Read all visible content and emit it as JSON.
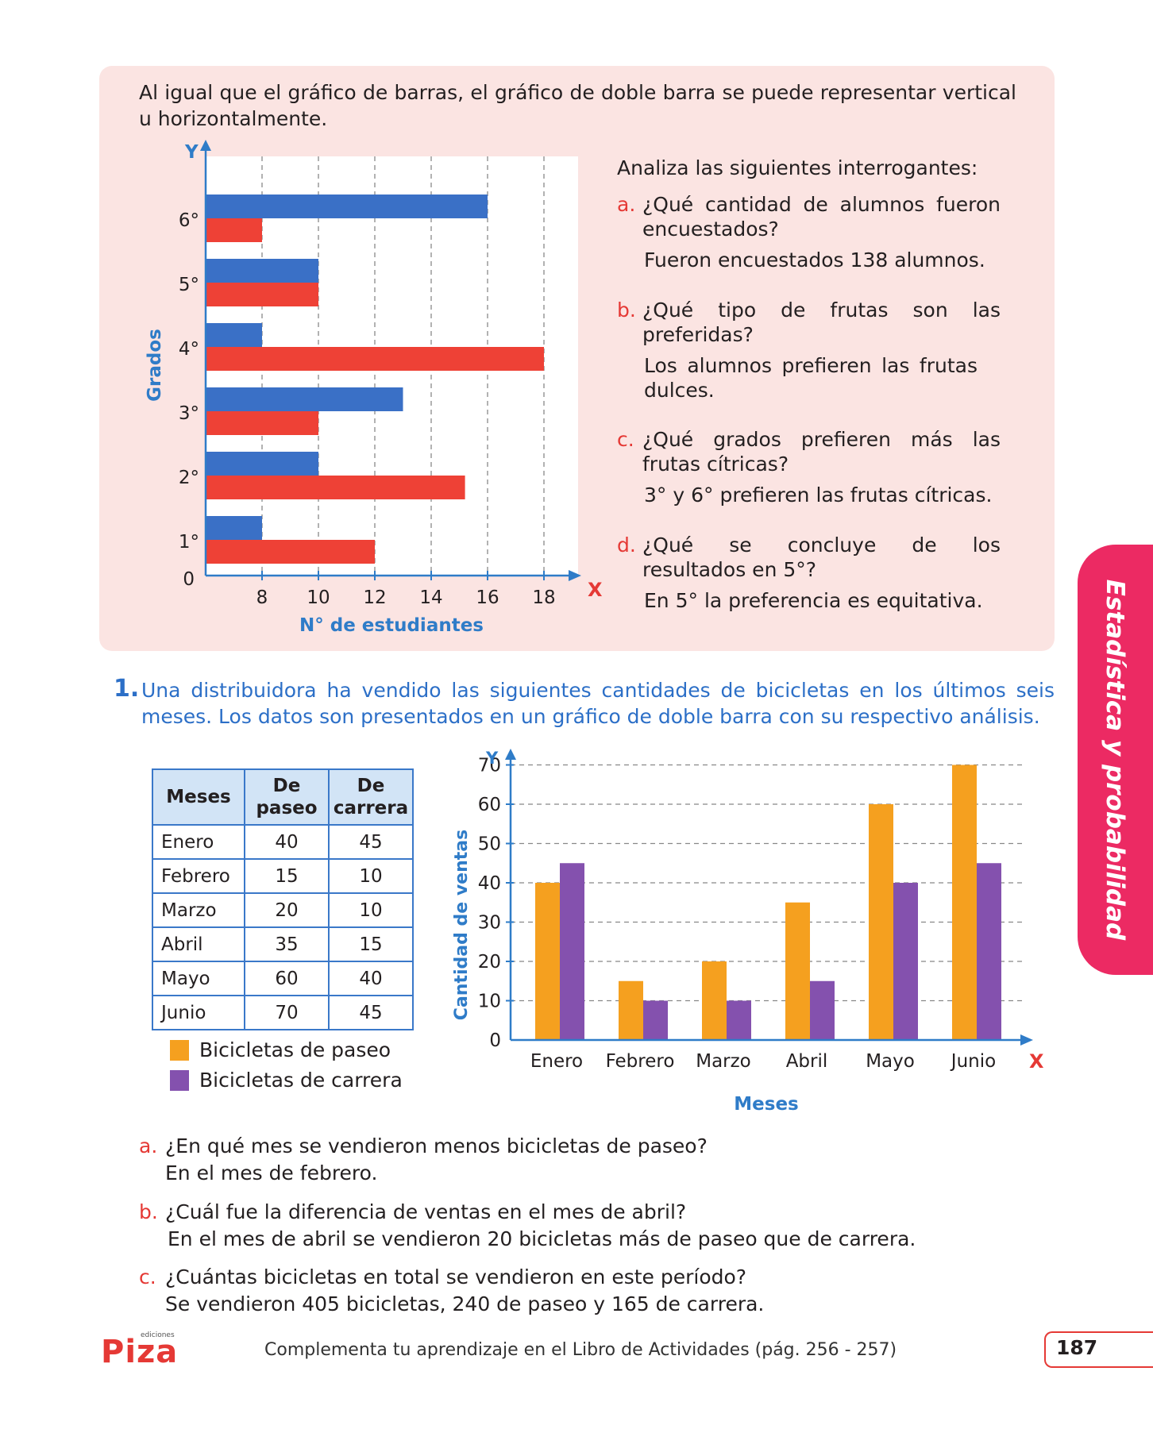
{
  "intro": "Al igual que el gráfico de barras, el gráfico de doble barra se puede representar vertical u horizontalmente.",
  "questions_title": "Analiza las siguientes interrogantes:",
  "questions": [
    {
      "letter": "a.",
      "line1": "¿Qué cantidad de alumnos fueron",
      "line2": "encuestados?",
      "answer": "Fueron encuestados 138 alumnos."
    },
    {
      "letter": "b.",
      "line1": "¿Qué tipo de frutas son las",
      "line2": "preferidas?",
      "answer": "Los alumnos prefieren las frutas dulces."
    },
    {
      "letter": "c.",
      "line1": "¿Qué grados prefieren más las",
      "line2": "frutas cítricas?",
      "answer": "3° y 6° prefieren las frutas cítricas."
    },
    {
      "letter": "d.",
      "line1": "¿Qué se concluye de los",
      "line2": "resultados en 5°?",
      "answer": "En 5° la preferencia es equitativa."
    }
  ],
  "exercise": {
    "number": "1.",
    "text": "Una distribuidora ha vendido las siguientes cantidades de bicicletas en los últimos seis meses. Los datos son presentados en un gráfico de doble barra con su respectivo análisis."
  },
  "table": {
    "headers": [
      "Meses",
      "De paseo",
      "De carrera"
    ],
    "rows": [
      [
        "Enero",
        "40",
        "45"
      ],
      [
        "Febrero",
        "15",
        "10"
      ],
      [
        "Marzo",
        "20",
        "10"
      ],
      [
        "Abril",
        "35",
        "15"
      ],
      [
        "Mayo",
        "60",
        "40"
      ],
      [
        "Junio",
        "70",
        "45"
      ]
    ]
  },
  "legend": [
    "Bicicletas de paseo",
    "Bicicletas de carrera"
  ],
  "analysis": [
    {
      "letter": "a.",
      "question": "¿En qué mes se vendieron menos bicicletas de paseo?",
      "answer": "En el mes de febrero."
    },
    {
      "letter": "b.",
      "question": "¿Cuál fue la diferencia de ventas en el mes de abril?",
      "answer": "En el mes de abril se vendieron 20 bicicletas más de paseo que de carrera."
    },
    {
      "letter": "c.",
      "question": "¿Cuántas bicicletas en total se vendieron en este período?",
      "answer": "Se vendieron 405 bicicletas, 240 de paseo y 165 de carrera."
    }
  ],
  "side_tab": "Estadística y probabilidad",
  "footer": {
    "logo": "Piza",
    "logo_sub": "ediciones",
    "text": "Complementa tu aprendizaje en el Libro de Actividades (pág. 256 - 257)",
    "page": "187"
  },
  "colors": {
    "blue": "#3a70c6",
    "red": "#ee4136",
    "orange": "#f5a01f",
    "purple": "#8451ae",
    "accent": "#ec2a63"
  },
  "chart_data": [
    {
      "type": "bar",
      "orientation": "horizontal",
      "categories": [
        "1°",
        "2°",
        "3°",
        "4°",
        "5°",
        "6°"
      ],
      "series": [
        {
          "values": [
            8,
            10,
            13,
            8,
            10,
            16
          ],
          "color": "#3a70c6"
        },
        {
          "values": [
            12,
            15.2,
            10,
            18,
            10,
            8
          ],
          "color": "#ee4136"
        }
      ],
      "xlabel": "N° de estudiantes",
      "ylabel": "Grados",
      "x_axis_letter": "X",
      "y_axis_letter": "Y",
      "origin_label": "0",
      "xticks": [
        "8",
        "10",
        "12",
        "14",
        "16",
        "18"
      ],
      "xlim": [
        6,
        19.2
      ],
      "grid": true
    },
    {
      "type": "bar",
      "orientation": "vertical",
      "categories": [
        "Enero",
        "Febrero",
        "Marzo",
        "Abril",
        "Mayo",
        "Junio"
      ],
      "series": [
        {
          "name": "Bicicletas de paseo",
          "values": [
            40,
            15,
            20,
            35,
            60,
            70
          ],
          "color": "#f5a01f"
        },
        {
          "name": "Bicicletas de carrera",
          "values": [
            45,
            10,
            10,
            15,
            40,
            45
          ],
          "color": "#8451ae"
        }
      ],
      "xlabel": "Meses",
      "ylabel": "Cantidad de ventas",
      "x_axis_letter": "X",
      "y_axis_letter": "Y",
      "yticks": [
        "0",
        "10",
        "20",
        "30",
        "40",
        "50",
        "60",
        "70"
      ],
      "ylim": [
        0,
        70
      ],
      "grid": true
    }
  ]
}
